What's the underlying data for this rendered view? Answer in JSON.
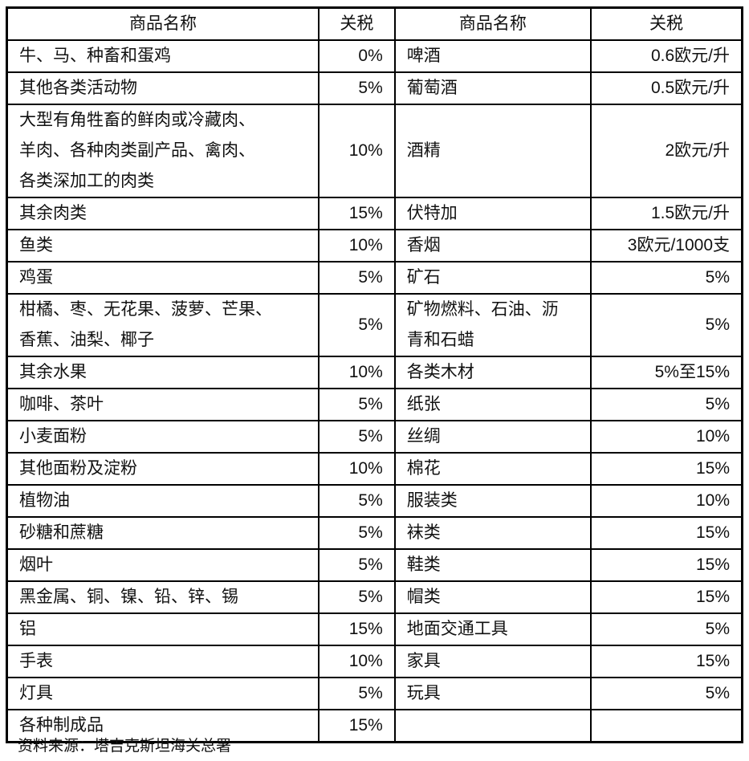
{
  "headers": [
    "商品名称",
    "关税",
    "商品名称",
    "关税"
  ],
  "rows": [
    [
      "牛、马、种畜和蛋鸡",
      "0%",
      "啤酒",
      "0.6欧元/升"
    ],
    [
      "其他各类活动物",
      "5%",
      "葡萄酒",
      "0.5欧元/升"
    ],
    [
      "大型有角牲畜的鲜肉或冷藏肉、\n羊肉、各种肉类副产品、禽肉、\n各类深加工的肉类",
      "10%",
      "酒精",
      "2欧元/升"
    ],
    [
      "其余肉类",
      "15%",
      "伏特加",
      "1.5欧元/升"
    ],
    [
      "鱼类",
      "10%",
      "香烟",
      "3欧元/1000支"
    ],
    [
      "鸡蛋",
      "5%",
      "矿石",
      "5%"
    ],
    [
      "柑橘、枣、无花果、菠萝、芒果、\n香蕉、油梨、椰子",
      "5%",
      "矿物燃料、石油、沥\n青和石蜡",
      "5%"
    ],
    [
      "其余水果",
      "10%",
      "各类木材",
      "5%至15%"
    ],
    [
      "咖啡、茶叶",
      "5%",
      "纸张",
      "5%"
    ],
    [
      "小麦面粉",
      "5%",
      "丝绸",
      "10%"
    ],
    [
      "其他面粉及淀粉",
      "10%",
      "棉花",
      "15%"
    ],
    [
      "植物油",
      "5%",
      "服装类",
      "10%"
    ],
    [
      "砂糖和蔗糖",
      "5%",
      "袜类",
      "15%"
    ],
    [
      "烟叶",
      "5%",
      "鞋类",
      "15%"
    ],
    [
      "黑金属、铜、镍、铅、锌、锡",
      "5%",
      "帽类",
      "15%"
    ],
    [
      "铝",
      "15%",
      "地面交通工具",
      "5%"
    ],
    [
      "手表",
      "10%",
      "家具",
      "15%"
    ],
    [
      "灯具",
      "5%",
      "玩具",
      "5%"
    ],
    [
      "各种制成品",
      "15%",
      "",
      ""
    ]
  ],
  "source": "资料来源：塔吉克斯坦海关总署"
}
